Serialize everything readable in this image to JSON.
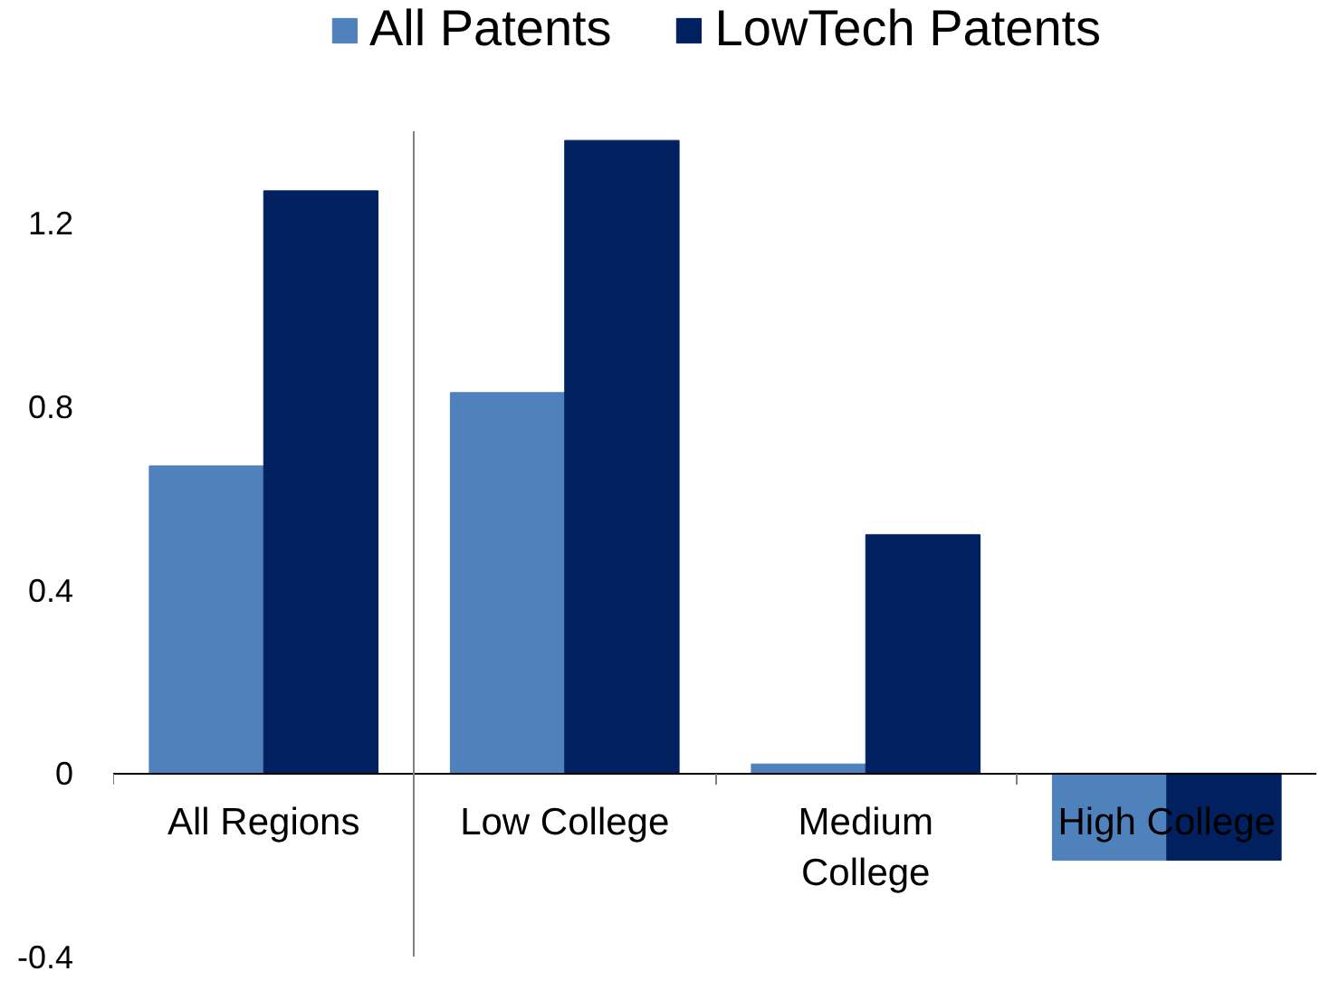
{
  "chart_data": {
    "type": "bar",
    "categories": [
      "All Regions",
      "Low College",
      "Medium College",
      "High College"
    ],
    "series": [
      {
        "name": "All Patents",
        "color": "#4f81bd",
        "values": [
          0.67,
          0.83,
          0.02,
          -0.19
        ]
      },
      {
        "name": "LowTech Patents",
        "color": "#002060",
        "values": [
          1.27,
          1.38,
          0.52,
          -0.19
        ]
      }
    ],
    "ylim": [
      -0.4,
      1.4
    ],
    "yticks": [
      -0.4,
      0,
      0.4,
      0.8,
      1.2
    ],
    "legend": "top"
  }
}
